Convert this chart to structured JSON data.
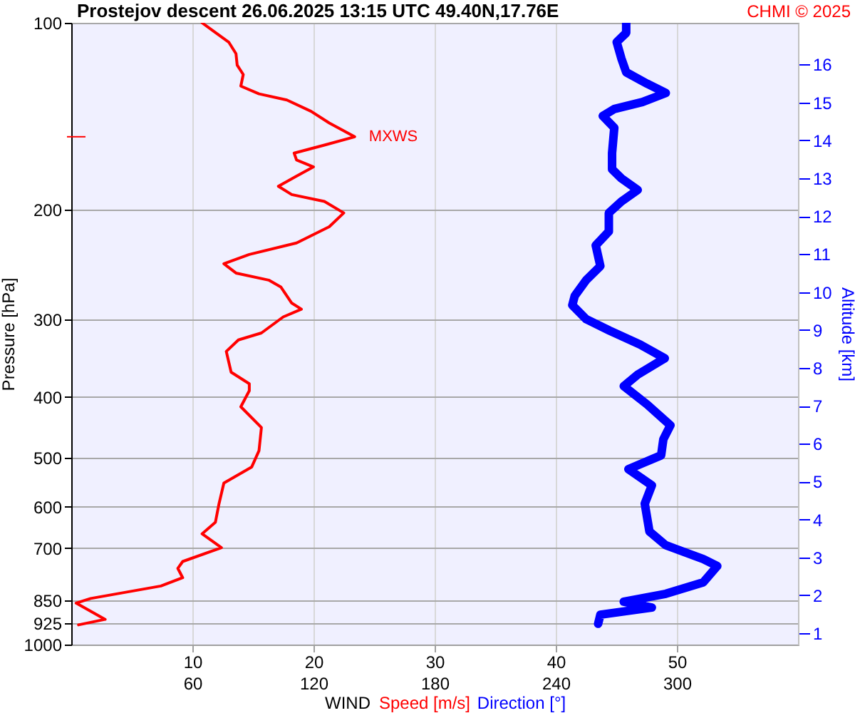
{
  "chart_data": {
    "type": "line",
    "orientation": "horizontal",
    "title": "Prostejov  descent  26.06.2025 13:15 UTC  49.40N,17.76E",
    "xlabel": "WIND",
    "ylabel": "Pressure [hPa]",
    "y2label": "Altitude [km]",
    "annotations": [
      "CHMI © 2025",
      {
        "text": "MXWS",
        "x": 23.4,
        "y": 152.5
      }
    ],
    "xlim": [
      0,
      60
    ],
    "xticks": [
      10,
      20,
      30,
      40,
      50
    ],
    "x2lim": [
      0,
      360
    ],
    "x2ticks": [
      60,
      120,
      180,
      240,
      300
    ],
    "ylim": [
      1000,
      100
    ],
    "yticks": [
      100,
      200,
      300,
      400,
      500,
      600,
      700,
      850,
      925,
      1000
    ],
    "log": "y",
    "y2lim": [
      0.7,
      17.1
    ],
    "y2ticks": [
      1,
      2,
      3,
      4,
      5,
      6,
      7,
      8,
      9,
      10,
      11,
      12,
      13,
      14,
      15,
      16
    ],
    "grid": true,
    "legend": "bottom",
    "series": [
      {
        "name": "Speed [m/s]",
        "color": "#ff0000",
        "x": [
          100,
          103,
          107.4,
          112.1,
          117,
          121.1,
          126.4,
          130.1,
          133.1,
          138.8,
          144.9,
          152.5,
          157.3,
          162,
          166.2,
          170.5,
          176.4,
          183.2,
          188.9,
          193.8,
          202.2,
          212.8,
          226,
          235.8,
          244,
          252.6,
          259.3,
          266,
          282.3,
          288.8,
          297.2,
          315.4,
          323.6,
          337.7,
          364.7,
          380.7,
          390.6,
          414.5,
          447.7,
          487.8,
          518,
          549.8,
          593.6,
          635.9,
          663.5,
          698.4,
          735.2,
          754.3,
          780.6,
          805.1,
          843.1,
          857.6,
          910.9,
          929.7
        ],
        "values": [
          10.8,
          11.7,
          13.0,
          13.6,
          13.7,
          14.2,
          14.0,
          15.5,
          17.8,
          19.8,
          21.3,
          23.4,
          20.9,
          18.4,
          18.6,
          20.0,
          18.6,
          17.1,
          18.2,
          20.9,
          22.5,
          21.3,
          18.6,
          14.7,
          12.6,
          13.6,
          16.3,
          17.3,
          18.2,
          19.0,
          17.5,
          15.7,
          13.8,
          12.8,
          13.2,
          14.7,
          14.7,
          14.0,
          15.7,
          15.5,
          14.9,
          12.6,
          12.2,
          11.9,
          10.8,
          12.4,
          9.2,
          8.8,
          9.2,
          7.4,
          1.6,
          0.4,
          2.8,
          0.6
        ]
      },
      {
        "name": "Direction [°]",
        "color": "#0000ff",
        "axis": "x2",
        "x": [
          100,
          103.8,
          107.4,
          114.1,
          120.1,
          125.3,
          129.7,
          134.1,
          137.6,
          141.2,
          147.5,
          162,
          172,
          177.9,
          185.7,
          193.8,
          202.2,
          216.6,
          228,
          246.2,
          259.3,
          275,
          284.6,
          299.7,
          312.7,
          329.2,
          346.4,
          368,
          384,
          411.1,
          444,
          467.6,
          496.2,
          522.2,
          554.6,
          593.6,
          657.7,
          692.3,
          728.7,
          747.8,
          794,
          828.6,
          853.1,
          872,
          895.3,
          925.9
        ],
        "values": [
          274.9,
          274.9,
          270.2,
          272.5,
          274.9,
          285.3,
          294.5,
          282.9,
          269.0,
          263.3,
          269.0,
          267.9,
          267.9,
          272.5,
          280.6,
          272.5,
          266.3,
          266.3,
          259.8,
          262.1,
          255.1,
          249.4,
          248.2,
          255.1,
          266.7,
          281.8,
          294.0,
          280.6,
          273.7,
          285.3,
          296.8,
          293.3,
          292.2,
          276.0,
          287.6,
          284.1,
          286.4,
          294.5,
          313.1,
          320.0,
          313.1,
          294.5,
          273.7,
          287.6,
          262.1,
          261.0
        ]
      }
    ]
  }
}
